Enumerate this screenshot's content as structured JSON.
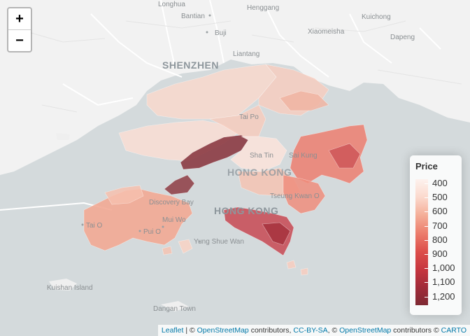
{
  "map": {
    "places": [
      {
        "name": "Longhua"
      },
      {
        "name": "Henggang"
      },
      {
        "name": "Bantian"
      },
      {
        "name": "Buji"
      },
      {
        "name": "Xiaomeisha"
      },
      {
        "name": "Kuichong"
      },
      {
        "name": "Dapeng"
      },
      {
        "name": "Liantang"
      },
      {
        "name": "Tai Po"
      },
      {
        "name": "Sha Tin"
      },
      {
        "name": "Sai Kung"
      },
      {
        "name": "Tseung Kwan O"
      },
      {
        "name": "Discovery Bay"
      },
      {
        "name": "Mui Wo"
      },
      {
        "name": "Tai O"
      },
      {
        "name": "Pui O"
      },
      {
        "name": "Yung Shue Wan"
      },
      {
        "name": "Kuishan Island"
      },
      {
        "name": "Dangan Town"
      }
    ],
    "cities": [
      {
        "name": "SHENZHEN"
      },
      {
        "name": "HONG KONG"
      },
      {
        "name": "HONG KONG"
      }
    ]
  },
  "zoom": {
    "in_label": "+",
    "out_label": "−"
  },
  "legend": {
    "title": "Price",
    "labels": [
      "400",
      "500",
      "600",
      "700",
      "800",
      "900",
      "1,000",
      "1,100",
      "1,200"
    ],
    "colors": [
      "#fdf2ee",
      "#f4ae98",
      "#dd4f4b",
      "#7e2a33"
    ]
  },
  "attribution": {
    "leaflet": "Leaflet",
    "sep1": " | © ",
    "osm1": "OpenStreetMap",
    "contrib1": " contributors, ",
    "ccbysa": "CC-BY-SA",
    "sep2": ", © ",
    "osm2": "OpenStreetMap",
    "contrib2": " contributors © ",
    "carto": "CARTO"
  }
}
